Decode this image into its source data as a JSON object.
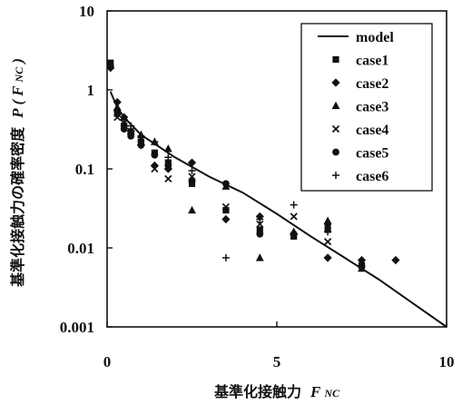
{
  "chart_data": {
    "type": "scatter",
    "xlabel": "基準化接触力",
    "xlabel_var": "F",
    "xlabel_sub": "NC",
    "ylabel": "基準化接触力の確率密度",
    "ylabel_var": "P",
    "ylabel_var_arg": "F",
    "ylabel_var_sub": "NC",
    "xlim": [
      0,
      10
    ],
    "ylim": [
      0.001,
      10
    ],
    "y_scale": "log",
    "x_ticks": [
      "0",
      "5",
      "10"
    ],
    "x_tick_values": [
      0,
      5,
      10
    ],
    "y_ticks": [
      "0.001",
      "0.01",
      "0.1",
      "1",
      "10"
    ],
    "y_tick_values": [
      0.001,
      0.01,
      0.1,
      1,
      10
    ],
    "grid": false,
    "legend_position": "top-right",
    "line": {
      "name": "model",
      "x": [
        0.1,
        0.3,
        0.5,
        1,
        2,
        3,
        4,
        5,
        6,
        7,
        8,
        9,
        10
      ],
      "y": [
        0.95,
        0.6,
        0.45,
        0.27,
        0.14,
        0.08,
        0.05,
        0.027,
        0.014,
        0.0075,
        0.004,
        0.002,
        0.001
      ]
    },
    "series": [
      {
        "name": "case1",
        "marker": "square",
        "x": [
          0.1,
          0.3,
          0.5,
          0.7,
          1.0,
          1.4,
          1.8,
          2.5,
          3.5,
          4.5,
          5.5,
          6.5,
          7.5
        ],
        "y": [
          2.2,
          0.5,
          0.35,
          0.28,
          0.22,
          0.16,
          0.12,
          0.065,
          0.03,
          0.017,
          0.014,
          0.017,
          0.006
        ]
      },
      {
        "name": "case2",
        "marker": "diamond",
        "x": [
          0.1,
          0.3,
          0.5,
          0.7,
          1.0,
          1.4,
          1.8,
          2.5,
          3.5,
          4.5,
          5.5,
          6.5,
          7.5,
          8.5
        ],
        "y": [
          1.9,
          0.7,
          0.45,
          0.3,
          0.2,
          0.11,
          0.1,
          0.12,
          0.023,
          0.025,
          0.015,
          0.0075,
          0.007,
          0.007
        ]
      },
      {
        "name": "case3",
        "marker": "triangle",
        "x": [
          0.3,
          0.5,
          0.7,
          1.0,
          1.4,
          1.8,
          2.5,
          3.5,
          4.5,
          5.5,
          6.5,
          7.5
        ],
        "y": [
          0.6,
          0.45,
          0.3,
          0.27,
          0.22,
          0.18,
          0.03,
          0.06,
          0.0075,
          0.016,
          0.022,
          0.0055
        ]
      },
      {
        "name": "case4",
        "marker": "x",
        "x": [
          0.3,
          0.5,
          0.7,
          1.0,
          1.4,
          1.8,
          2.5,
          3.5,
          4.5,
          5.5,
          6.5,
          7.5
        ],
        "y": [
          0.45,
          0.38,
          0.3,
          0.24,
          0.1,
          0.075,
          0.08,
          0.033,
          0.02,
          0.025,
          0.012,
          0.0065
        ]
      },
      {
        "name": "case5",
        "marker": "circle",
        "x": [
          0.1,
          0.3,
          0.5,
          0.7,
          1.0,
          1.4,
          1.8,
          2.5,
          3.5,
          4.5,
          5.5,
          6.5,
          7.5
        ],
        "y": [
          2.0,
          0.55,
          0.32,
          0.26,
          0.2,
          0.15,
          0.11,
          0.07,
          0.065,
          0.015,
          0.015,
          0.02,
          0.0058
        ]
      },
      {
        "name": "case6",
        "marker": "plus",
        "x": [
          0.3,
          0.5,
          0.7,
          1.0,
          1.4,
          1.8,
          2.5,
          3.5,
          4.5,
          5.5,
          6.5
        ],
        "y": [
          0.55,
          0.42,
          0.35,
          0.26,
          0.22,
          0.14,
          0.095,
          0.0075,
          0.023,
          0.035,
          0.016
        ]
      }
    ]
  }
}
